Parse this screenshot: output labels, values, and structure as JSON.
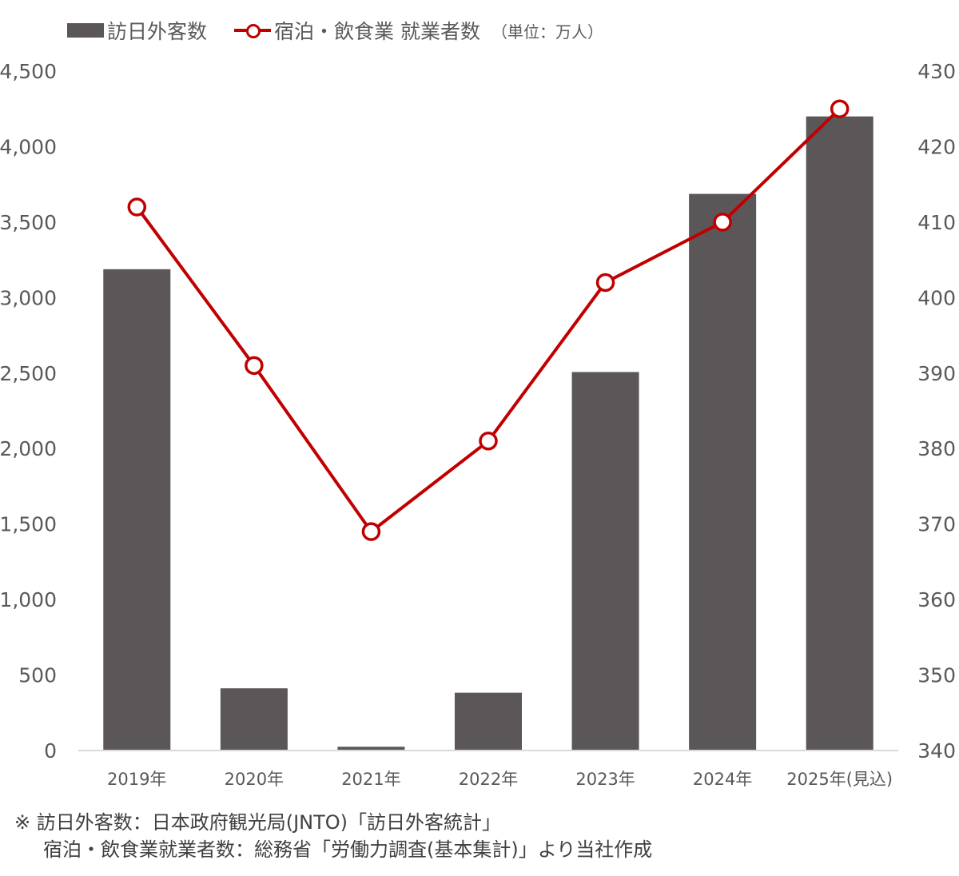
{
  "legend": {
    "bar_label": "訪日外客数",
    "line_label": "宿泊・飲食業 就業者数",
    "unit": "（単位：万人）"
  },
  "colors": {
    "bar": "#5b5759",
    "line": "#c00000",
    "axis": "#d9d9d9",
    "text": "#595959"
  },
  "source": {
    "line1": "※ 訪日外客数：日本政府観光局(JNTO)「訪日外客統計」",
    "line2": "宿泊・飲食業就業者数：総務省「労働力調査(基本集計)」より当社作成"
  },
  "chart_data": {
    "type": "bar",
    "categories": [
      "2019年",
      "2020年",
      "2021年",
      "2022年",
      "2023年",
      "2024年",
      "2025年(見込)"
    ],
    "series": [
      {
        "name": "訪日外客数",
        "type": "bar",
        "axis": "left",
        "values": [
          3188,
          412,
          25,
          383,
          2507,
          3687,
          4200
        ]
      },
      {
        "name": "宿泊・飲食業 就業者数",
        "type": "line",
        "axis": "right",
        "values": [
          412,
          391,
          369,
          381,
          402,
          410,
          425
        ]
      }
    ],
    "y_left": {
      "min": 0,
      "max": 4500,
      "ticks": [
        0,
        500,
        1000,
        1500,
        2000,
        2500,
        3000,
        3500,
        4000,
        4500
      ],
      "tick_labels": [
        "0",
        "500",
        "1,000",
        "1,500",
        "2,000",
        "2,500",
        "3,000",
        "3,500",
        "4,000",
        "4,500"
      ]
    },
    "y_right": {
      "min": 340,
      "max": 430,
      "ticks": [
        340,
        350,
        360,
        370,
        380,
        390,
        400,
        410,
        420,
        430
      ],
      "tick_labels": [
        "340",
        "350",
        "360",
        "370",
        "380",
        "390",
        "400",
        "410",
        "420",
        "430"
      ]
    },
    "grid": false,
    "legend_position": "top-left"
  }
}
